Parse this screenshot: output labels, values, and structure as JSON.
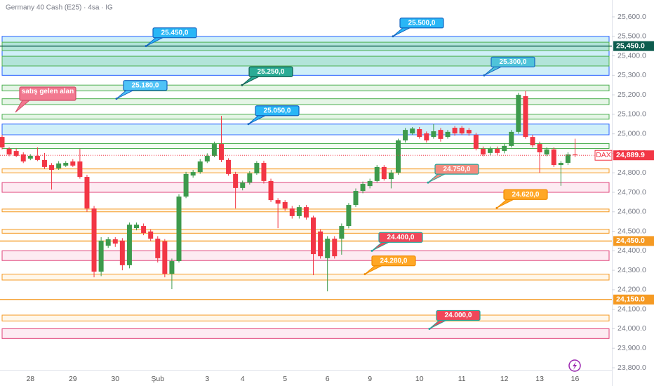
{
  "chart_data": {
    "type": "candlestick",
    "title": "Germany 40 Cash (E25) · 4sa · IG",
    "categories": [
      null,
      null,
      null,
      null,
      "28",
      null,
      null,
      null,
      null,
      null,
      "29",
      null,
      null,
      null,
      null,
      null,
      "30",
      null,
      null,
      null,
      null,
      null,
      "Şub",
      null,
      null,
      null,
      null,
      null,
      null,
      "3",
      null,
      null,
      null,
      null,
      "4",
      null,
      null,
      null,
      null,
      null,
      "5",
      null,
      null,
      null,
      null,
      null,
      "6",
      null,
      null,
      null,
      null,
      null,
      "9",
      null,
      null,
      null,
      null,
      null,
      null,
      "10",
      null,
      null,
      null,
      null,
      null,
      "11",
      null,
      null,
      null,
      null,
      null,
      "12",
      null,
      null,
      null,
      null,
      "13",
      null,
      null,
      null,
      null,
      "16"
    ],
    "open": [
      24984,
      24923,
      24912,
      24894,
      24873,
      24887,
      24866,
      24840,
      24823,
      24837,
      24858,
      24858,
      24779,
      24617,
      24293,
      24426,
      24459,
      24452,
      24326,
      24516,
      24527,
      24499,
      24462,
      24448,
      24282,
      24347,
      24678,
      24786,
      24804,
      24858,
      24887,
      24948,
      24866,
      24794,
      24722,
      24750,
      24797,
      24851,
      24758,
      24660,
      24650,
      24617,
      24578,
      24624,
      24571,
      24499,
      24362,
      24462,
      24462,
      24527,
      24635,
      24707,
      24732,
      24758,
      24830,
      24768,
      24801,
      24966,
      25002,
      25024,
      25002,
      24984,
      25020,
      24984,
      25031,
      25031,
      25020,
      24995,
      24923,
      24902,
      24923,
      24912,
      24938,
      25010,
      25193,
      24984,
      24948,
      24894,
      24920,
      24840,
      24851,
      24894
    ],
    "high": [
      24995,
      24930,
      24925,
      24905,
      24895,
      24930,
      24902,
      24850,
      24860,
      24860,
      24870,
      24923,
      24790,
      24630,
      24470,
      24470,
      24470,
      24465,
      24545,
      24545,
      24540,
      24510,
      24475,
      24460,
      24360,
      24690,
      24805,
      24815,
      24870,
      24900,
      24960,
      25092,
      24875,
      24805,
      24760,
      24808,
      24860,
      24862,
      24770,
      24670,
      24660,
      24630,
      24635,
      24635,
      24580,
      24510,
      24475,
      24475,
      24540,
      24645,
      24720,
      24755,
      24770,
      24840,
      24840,
      24815,
      24975,
      25030,
      25035,
      25035,
      25012,
      25050,
      25030,
      25020,
      25040,
      25040,
      25030,
      25005,
      24935,
      24935,
      24935,
      24950,
      25020,
      25210,
      25220,
      24995,
      24960,
      24930,
      24930,
      24860,
      24905,
      24975
    ],
    "low": [
      24920,
      24885,
      24880,
      24850,
      24865,
      24860,
      24820,
      24714,
      24815,
      24830,
      24830,
      24770,
      24600,
      24264,
      24270,
      24415,
      24420,
      24300,
      24310,
      24505,
      24480,
      24450,
      24340,
      24264,
      24203,
      24340,
      24670,
      24775,
      24795,
      24850,
      24880,
      24855,
      24785,
      24617,
      24710,
      24740,
      24790,
      24745,
      24650,
      24516,
      24605,
      24565,
      24565,
      24560,
      24275,
      24360,
      24192,
      24360,
      24380,
      24515,
      24625,
      24695,
      24720,
      24750,
      24760,
      24720,
      24790,
      24955,
      24995,
      24975,
      24955,
      24975,
      24960,
      24975,
      24990,
      24995,
      24990,
      24915,
      24885,
      24890,
      24890,
      24900,
      24930,
      25000,
      24975,
      24930,
      24800,
      24885,
      24830,
      24733,
      24840,
      24880
    ],
    "close": [
      24930,
      24894,
      24887,
      24858,
      24887,
      24866,
      24830,
      24815,
      24848,
      24851,
      24837,
      24779,
      24617,
      24293,
      24452,
      24459,
      24437,
      24326,
      24534,
      24534,
      24491,
      24462,
      24362,
      24282,
      24347,
      24678,
      24794,
      24804,
      24858,
      24887,
      24948,
      24866,
      24794,
      24722,
      24750,
      24797,
      24851,
      24758,
      24660,
      24642,
      24617,
      24578,
      24624,
      24571,
      24383,
      24372,
      24462,
      24372,
      24527,
      24635,
      24707,
      24743,
      24758,
      24830,
      24768,
      24801,
      24966,
      25020,
      25027,
      24984,
      24966,
      25013,
      24974,
      25010,
      25002,
      25002,
      25002,
      24923,
      24894,
      24923,
      24902,
      24938,
      25010,
      25200,
      24984,
      24941,
      24905,
      24920,
      24840,
      24851,
      24894,
      24889.9
    ],
    "up_color": "#3d9a4c",
    "down_color": "#f23645",
    "ylim": [
      23800,
      25600
    ],
    "yticks": [
      {
        "value": 25600,
        "label": "25,600.0"
      },
      {
        "value": 25500,
        "label": "25,500.0"
      },
      {
        "value": 25400,
        "label": "25,400.0"
      },
      {
        "value": 25300,
        "label": "25,300.0"
      },
      {
        "value": 25200,
        "label": "25,200.0"
      },
      {
        "value": 25100,
        "label": "25,100.0"
      },
      {
        "value": 25000,
        "label": "25,000.0"
      },
      {
        "value": 24900,
        "label": "24,900.0"
      },
      {
        "value": 24800,
        "label": "24,800.0"
      },
      {
        "value": 24700,
        "label": "24,700.0"
      },
      {
        "value": 24600,
        "label": "24,600.0"
      },
      {
        "value": 24500,
        "label": "24,500.0"
      },
      {
        "value": 24400,
        "label": "24,400.0"
      },
      {
        "value": 24300,
        "label": "24,300.0"
      },
      {
        "value": 24200,
        "label": "24,200.0"
      },
      {
        "value": 24100,
        "label": "24,100.0"
      },
      {
        "value": 24000,
        "label": "24,000.0"
      },
      {
        "value": 23900,
        "label": "23,900.0"
      },
      {
        "value": 23800,
        "label": "23,800.0"
      }
    ],
    "zones": [
      {
        "low": 25300,
        "high": 25500,
        "color": "#2962ff",
        "fill": "#bfe9f5"
      },
      {
        "low": 25427,
        "high": 25470,
        "color": "#4caf50",
        "fill": "#a8e0cf"
      },
      {
        "low": 25348,
        "high": 25398,
        "color": "#4caf50",
        "fill": "#a8e0cf"
      },
      {
        "low": 25220,
        "high": 25250,
        "color": "#4caf50",
        "fill": "#dcf1dd"
      },
      {
        "low": 25150,
        "high": 25180,
        "color": "#4caf50",
        "fill": "#dcf1dd"
      },
      {
        "low": 25075,
        "high": 25100,
        "color": "#4caf50",
        "fill": "#dcf1dd"
      },
      {
        "low": 24995,
        "high": 25050,
        "color": "#2962ff",
        "fill": "#bfe9f5"
      },
      {
        "low": 24925,
        "high": 24950,
        "color": "#4caf50",
        "fill": "#eef8ee"
      },
      {
        "low": 24800,
        "high": 24820,
        "color": "#f59a23",
        "fill": "#fff4e3"
      },
      {
        "low": 24700,
        "high": 24750,
        "color": "#e0437a",
        "fill": "#fce4ee"
      },
      {
        "low": 24600,
        "high": 24614,
        "color": "#f59a23",
        "fill": "#fff4e3"
      },
      {
        "low": 24490,
        "high": 24510,
        "color": "#f59a23",
        "fill": "#fff4e3"
      },
      {
        "low": 24350,
        "high": 24400,
        "color": "#e0437a",
        "fill": "#fce4ee"
      },
      {
        "low": 24250,
        "high": 24280,
        "color": "#f59a23",
        "fill": "#fff4e3"
      },
      {
        "low": 24040,
        "high": 24070,
        "color": "#f59a23",
        "fill": "#fff4e3"
      },
      {
        "low": 23950,
        "high": 24000,
        "color": "#e0437a",
        "fill": "#fce4ee"
      }
    ],
    "price_lines": [
      {
        "value": 25450,
        "label": "25,450.0",
        "color": "#0d5c4e"
      },
      {
        "value": 24450,
        "label": "24,450.0",
        "color": "#f59a23"
      },
      {
        "value": 24150,
        "label": "24,150.0",
        "color": "#f59a23"
      }
    ],
    "last_price": {
      "name": "DAX",
      "value": 24889.9,
      "label": "24,889.9",
      "color": "#f23645"
    },
    "annotations": [
      {
        "value": 25450,
        "label": "25.450,0",
        "color": "#29b6f6",
        "border": "#1565c0"
      },
      {
        "value": 25500,
        "label": "25.500,0",
        "color": "#29b6f6",
        "border": "#1565c0"
      },
      {
        "value": 25300,
        "label": "25.300,0",
        "color": "#4fc3d9",
        "border": "#1565c0"
      },
      {
        "value": 25250,
        "label": "25.250,0",
        "color": "#2bab95",
        "border": "#0d5c4e"
      },
      {
        "value": 25180,
        "label": "25.180,0",
        "color": "#4fc3f7",
        "border": "#1565c0"
      },
      {
        "value": 25050,
        "label": "25.050,0",
        "color": "#29b6f6",
        "border": "#1565c0"
      },
      {
        "value": 24750,
        "label": "24.750,0",
        "color": "#f28b7e",
        "border": "#26a69a"
      },
      {
        "value": 24620,
        "label": "24.620,0",
        "color": "#ffa726",
        "border": "#ef8c00"
      },
      {
        "value": 24400,
        "label": "24.400,0",
        "color": "#f0475a",
        "border": "#26a69a"
      },
      {
        "value": 24280,
        "label": "24.280,0",
        "color": "#ffa726",
        "border": "#ef8c00"
      },
      {
        "value": 24000,
        "label": "24.000,0",
        "color": "#f0475a",
        "border": "#26a69a"
      },
      {
        "label": "satış gelen alan",
        "color": "#f2788f",
        "border": "#d0506a"
      }
    ]
  }
}
